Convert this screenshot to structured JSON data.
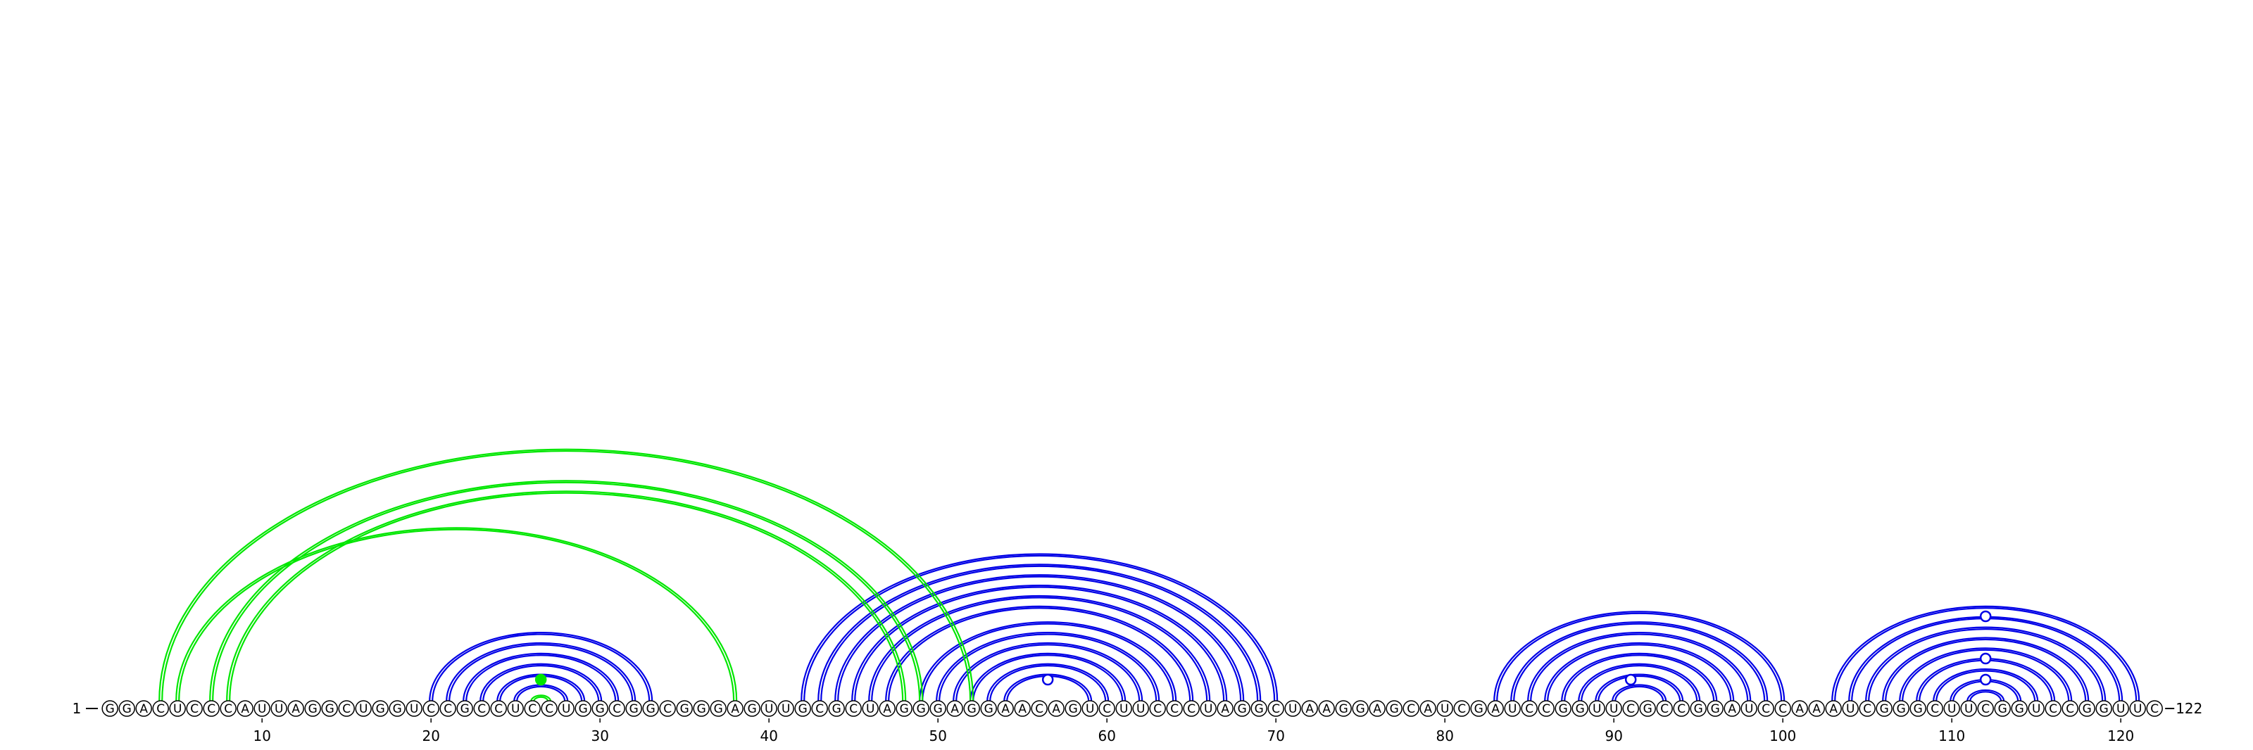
{
  "sequence": {
    "start_label": "1",
    "end_label": "122",
    "nucleotides": "GGACUCCCAUUAGGCUGGUCCGCCUCCUGGCGGCGGGAGUUGCGCUAGGGAGGAACAGUCUUCCCUAGGCUAAGGAGCAUCGAUCCGGUUCGCCGGAUCCAAAUCGGGCUUCGGUCCGGUUC"
  },
  "axis": {
    "ticks": [
      "10",
      "20",
      "30",
      "40",
      "50",
      "60",
      "70",
      "80",
      "90",
      "100",
      "110",
      "120"
    ]
  },
  "colors": {
    "helix": "#0000e6",
    "pseudoknot": "#00e600",
    "circle_stroke": "#000000"
  },
  "helices": [
    {
      "name": "helix-20-33",
      "color": "blue",
      "pairs": [
        [
          20,
          33
        ],
        [
          21,
          32
        ],
        [
          22,
          31
        ],
        [
          23,
          30
        ],
        [
          24,
          29
        ],
        [
          25,
          28
        ]
      ]
    },
    {
      "name": "helix-42-70",
      "color": "blue",
      "pairs": [
        [
          42,
          70
        ],
        [
          43,
          69
        ],
        [
          44,
          68
        ],
        [
          45,
          67
        ],
        [
          46,
          66
        ],
        [
          47,
          65
        ],
        [
          49,
          64
        ],
        [
          50,
          63
        ],
        [
          51,
          62
        ],
        [
          52,
          61
        ],
        [
          53,
          60
        ],
        [
          54,
          59
        ]
      ]
    },
    {
      "name": "helix-83-100",
      "color": "blue",
      "pairs": [
        [
          83,
          100
        ],
        [
          84,
          99
        ],
        [
          85,
          98
        ],
        [
          86,
          97
        ],
        [
          87,
          96
        ],
        [
          88,
          95
        ],
        [
          89,
          94
        ],
        [
          90,
          93
        ]
      ]
    },
    {
      "name": "helix-103-121",
      "color": "blue",
      "pairs": [
        [
          103,
          121
        ],
        [
          104,
          120
        ],
        [
          105,
          119
        ],
        [
          106,
          118
        ],
        [
          107,
          117
        ],
        [
          108,
          116
        ],
        [
          109,
          115
        ],
        [
          110,
          114
        ],
        [
          111,
          113
        ]
      ]
    },
    {
      "name": "pseudoknot-green",
      "color": "green",
      "pairs": [
        [
          4,
          52
        ],
        [
          5,
          38
        ],
        [
          7,
          49
        ],
        [
          8,
          48
        ],
        [
          26,
          27
        ]
      ]
    }
  ],
  "markers": [
    {
      "name": "junction-marker",
      "kind": "open",
      "position": 56.5,
      "height": 1
    },
    {
      "name": "junction-marker",
      "kind": "open",
      "position": 91,
      "height": 1
    },
    {
      "name": "junction-marker",
      "kind": "open",
      "position": 112,
      "height": 1
    },
    {
      "name": "junction-marker",
      "kind": "open",
      "position": 112,
      "height": 2
    },
    {
      "name": "junction-marker",
      "kind": "open",
      "position": 112,
      "height": 4
    },
    {
      "name": "junction-marker",
      "kind": "filled",
      "position": 26.5,
      "height": 1
    }
  ]
}
